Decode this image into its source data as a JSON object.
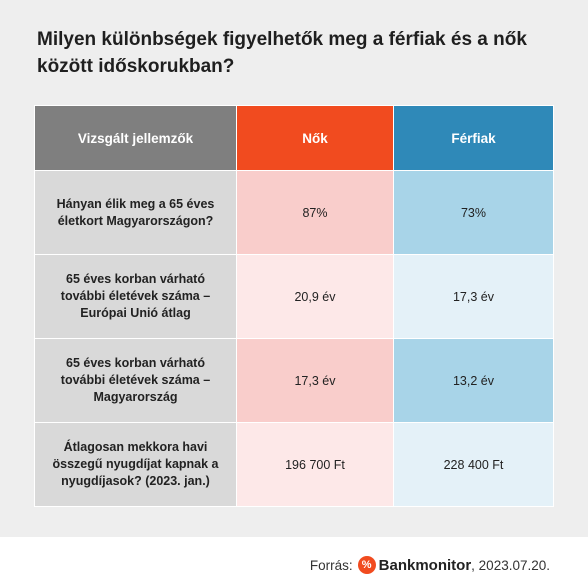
{
  "title": "Milyen különbségek figyelhetők meg a férfiak és a nők között időskorukban?",
  "table": {
    "headers": [
      "Vizsgált jellemzők",
      "Nők",
      "Férfiak"
    ],
    "rows": [
      {
        "label": "Hányan élik meg a 65 éves életkort Magyarországon?",
        "women": "87%",
        "men": "73%"
      },
      {
        "label": "65 éves korban várható további életévek  száma – Európai Unió átlag",
        "women": "20,9 év",
        "men": "17,3 év"
      },
      {
        "label": "65 éves korban várható további életévek  száma – Magyarország",
        "women": "17,3 év",
        "men": "13,2 év"
      },
      {
        "label": "Átlagosan mekkora havi összegű nyugdíjat kapnak a nyugdíjasok? (2023. jan.)",
        "women": "196 700 Ft",
        "men": "228 400 Ft"
      }
    ]
  },
  "footer": {
    "source_label": "Forrás:",
    "logo_icon": "percent-icon",
    "logo_symbol": "%",
    "brand": "Bankmonitor",
    "date": ", 2023.07.20."
  },
  "colors": {
    "women_header": "#f14b1f",
    "men_header": "#2f89b8",
    "attr_header": "#7f7f7f"
  }
}
